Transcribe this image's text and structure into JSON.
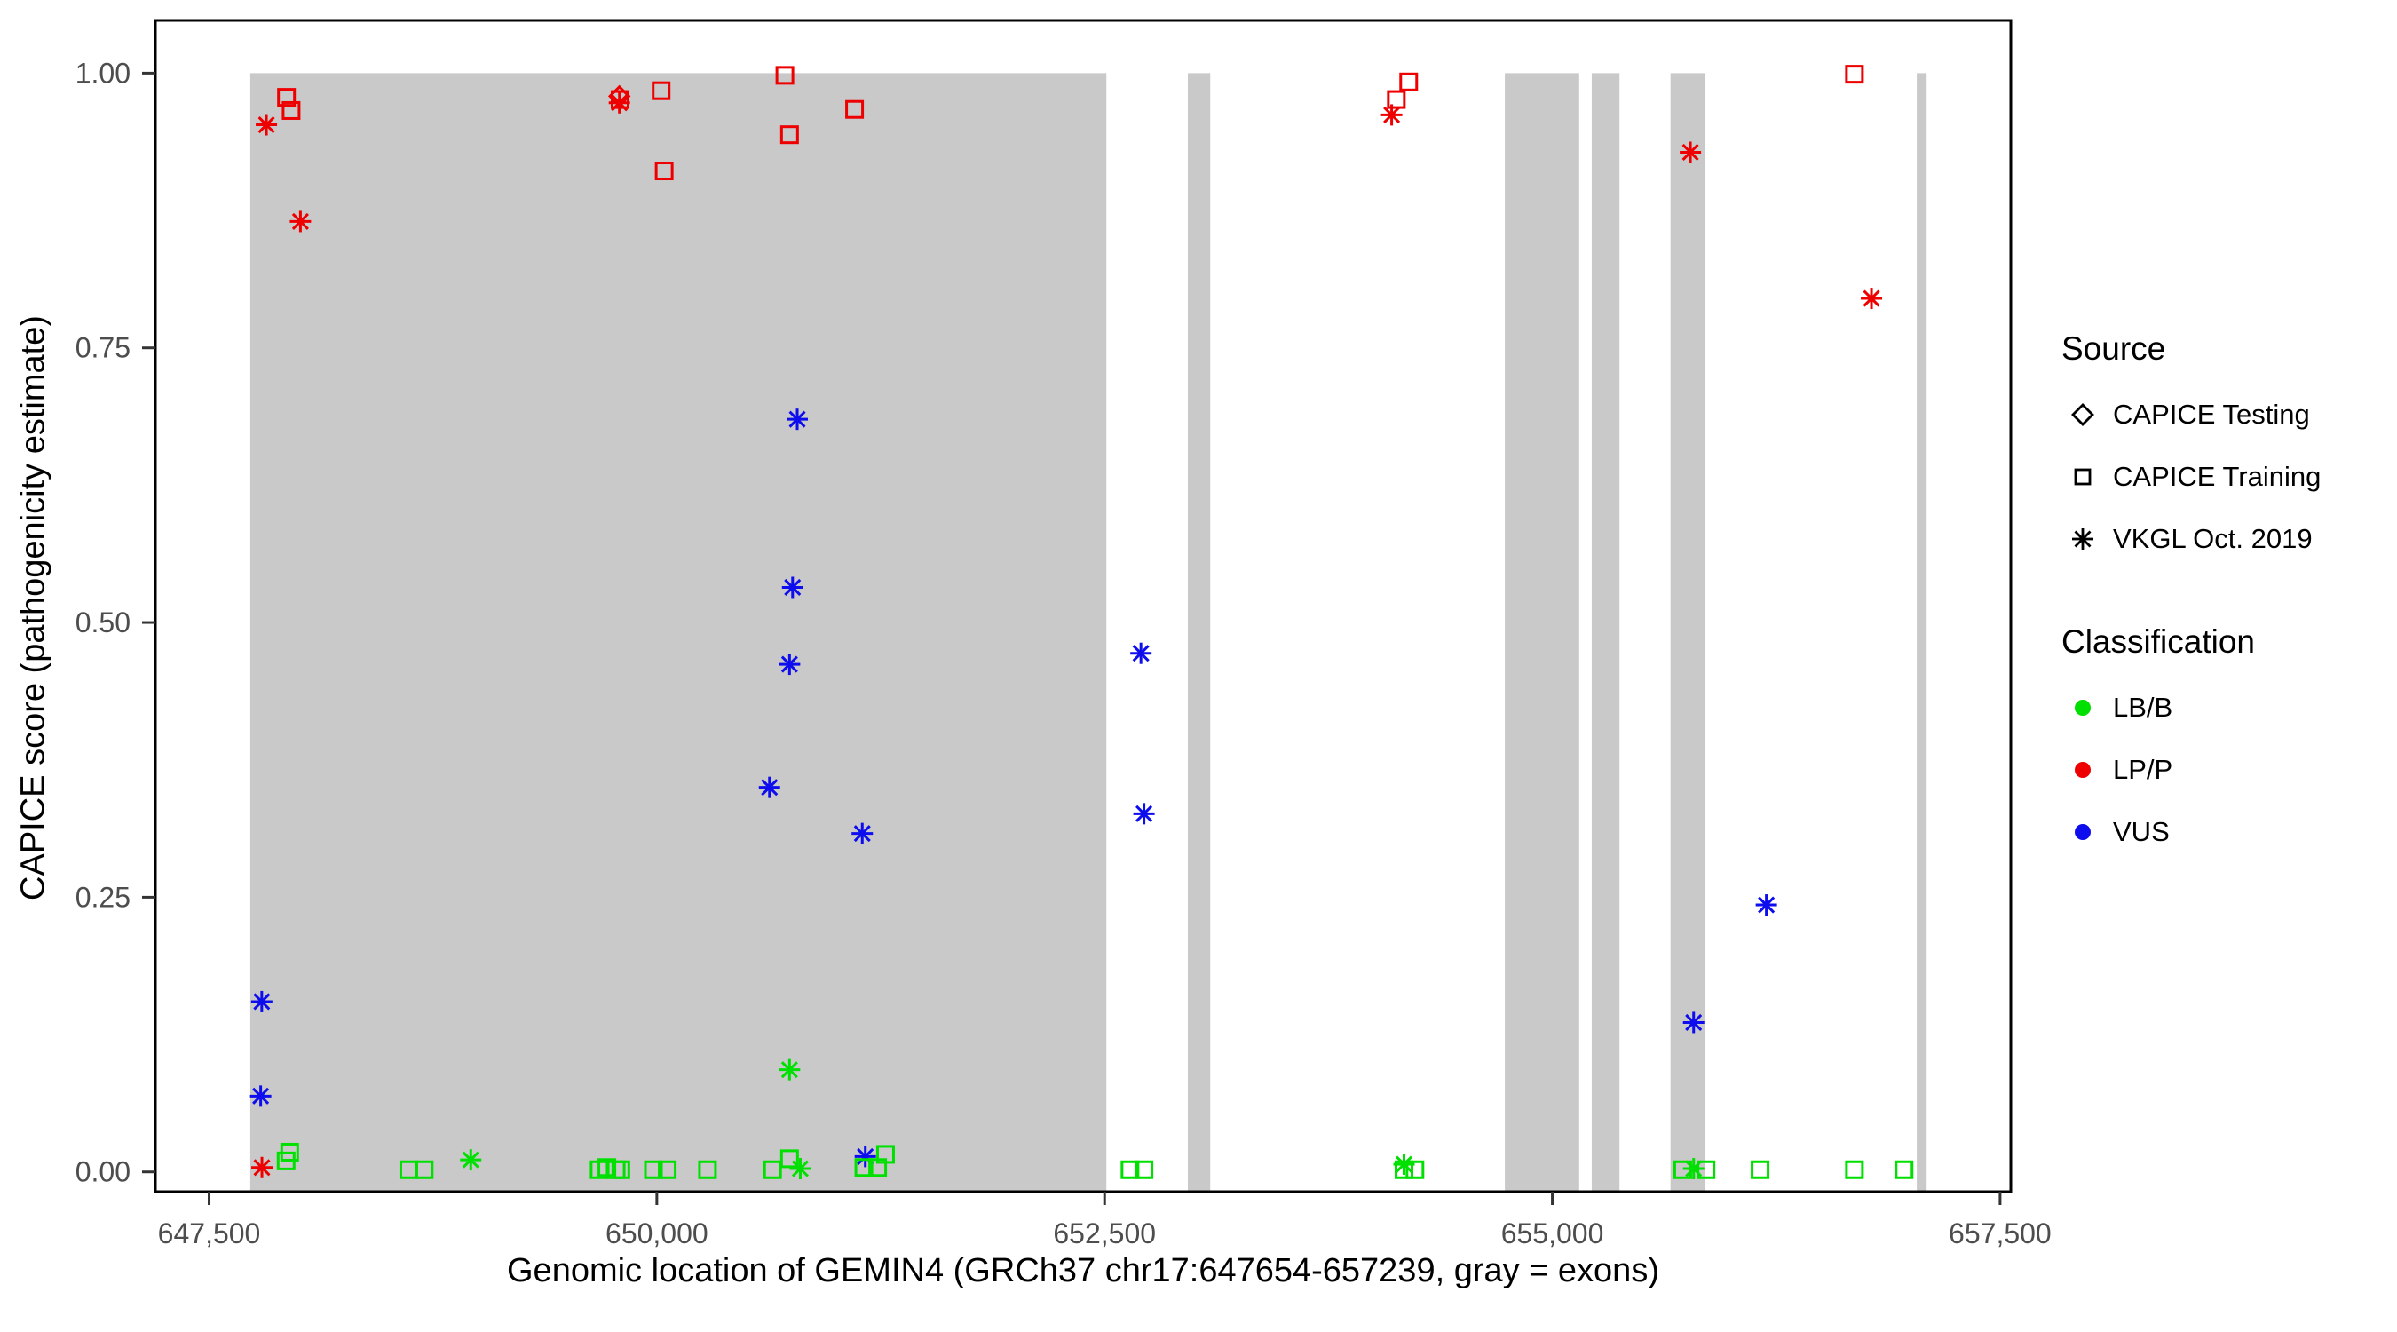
{
  "chart_data": {
    "type": "scatter",
    "title": "",
    "xlabel": "Genomic location of GEMIN4 (GRCh37 chr17:647654-657239, gray = exons)",
    "ylabel": "CAPICE score (pathogenicity estimate)",
    "xlim": [
      647200,
      657560
    ],
    "ylim": [
      -0.018,
      1.048
    ],
    "xticks": [
      647500,
      650000,
      652500,
      655000,
      657500
    ],
    "xtick_labels": [
      "647,500",
      "650,000",
      "652,500",
      "655,000",
      "657,500"
    ],
    "yticks": [
      0,
      0.25,
      0.5,
      0.75,
      1
    ],
    "ytick_labels": [
      "0.00",
      "0.25",
      "0.50",
      "0.75",
      "1.00"
    ],
    "grid": false,
    "exon_color": "#c9c9c9",
    "exon_y": [
      -0.018,
      1.0
    ],
    "exons": [
      [
        647730,
        652510
      ],
      [
        652965,
        653090
      ],
      [
        654735,
        655150
      ],
      [
        655220,
        655375
      ],
      [
        655660,
        655855
      ],
      [
        657035,
        657090
      ]
    ],
    "colors": {
      "LB/B": "#00e000",
      "LP/P": "#ee0000",
      "VUS": "#0d0dee"
    },
    "series": [
      {
        "name": "LP/P - CAPICE Testing",
        "classification": "LP/P",
        "source": "CAPICE Testing",
        "shape": "diamond",
        "points": [
          [
            649791,
            0.979
          ]
        ]
      },
      {
        "name": "LP/P - CAPICE Training",
        "classification": "LP/P",
        "source": "CAPICE Training",
        "shape": "square",
        "points": [
          [
            647932,
            0.978
          ],
          [
            647958,
            0.966
          ],
          [
            649795,
            0.976
          ],
          [
            650024,
            0.984
          ],
          [
            650041,
            0.911
          ],
          [
            650715,
            0.998
          ],
          [
            650741,
            0.944
          ],
          [
            651104,
            0.967
          ],
          [
            654129,
            0.976
          ],
          [
            654198,
            0.992
          ],
          [
            656687,
            0.999
          ]
        ]
      },
      {
        "name": "LP/P - VKGL Oct. 2019",
        "classification": "LP/P",
        "source": "VKGL Oct. 2019",
        "shape": "asterisk",
        "points": [
          [
            647820,
            0.953
          ],
          [
            648010,
            0.865
          ],
          [
            649791,
            0.973
          ],
          [
            654103,
            0.962
          ],
          [
            655771,
            0.928
          ],
          [
            656782,
            0.795
          ],
          [
            647795,
            0.004
          ]
        ]
      },
      {
        "name": "VUS - VKGL Oct. 2019",
        "classification": "VUS",
        "source": "VKGL Oct. 2019",
        "shape": "asterisk",
        "points": [
          [
            647794,
            0.155
          ],
          [
            647788,
            0.069
          ],
          [
            650784,
            0.685
          ],
          [
            650758,
            0.532
          ],
          [
            650741,
            0.462
          ],
          [
            650629,
            0.35
          ],
          [
            651147,
            0.308
          ],
          [
            652703,
            0.472
          ],
          [
            652720,
            0.326
          ],
          [
            656195,
            0.243
          ],
          [
            655789,
            0.136
          ],
          [
            651164,
            0.014
          ]
        ]
      },
      {
        "name": "LB/B - VKGL Oct. 2019",
        "classification": "LB/B",
        "source": "VKGL Oct. 2019",
        "shape": "asterisk",
        "points": [
          [
            648961,
            0.011
          ],
          [
            650741,
            0.093
          ],
          [
            650801,
            0.003
          ],
          [
            654172,
            0.007
          ],
          [
            655789,
            0.003
          ]
        ]
      },
      {
        "name": "LB/B - CAPICE Training",
        "classification": "LB/B",
        "source": "CAPICE Training",
        "shape": "square",
        "points": [
          [
            647930,
            0.01
          ],
          [
            647950,
            0.018
          ],
          [
            648615,
            0.002
          ],
          [
            648701,
            0.002
          ],
          [
            649678,
            0.002
          ],
          [
            649721,
            0.004
          ],
          [
            649773,
            0.002
          ],
          [
            649799,
            0.002
          ],
          [
            649981,
            0.002
          ],
          [
            650058,
            0.002
          ],
          [
            650283,
            0.002
          ],
          [
            650646,
            0.002
          ],
          [
            650741,
            0.012
          ],
          [
            651156,
            0.004
          ],
          [
            651233,
            0.004
          ],
          [
            651277,
            0.016
          ],
          [
            652642,
            0.002
          ],
          [
            652720,
            0.002
          ],
          [
            654172,
            0.002
          ],
          [
            654233,
            0.002
          ],
          [
            655728,
            0.002
          ],
          [
            655858,
            0.002
          ],
          [
            656160,
            0.002
          ],
          [
            656687,
            0.002
          ],
          [
            656964,
            0.002
          ]
        ]
      }
    ],
    "legend": {
      "source": {
        "title": "Source",
        "items": [
          {
            "label": "CAPICE Testing",
            "shape": "diamond"
          },
          {
            "label": "CAPICE Training",
            "shape": "square"
          },
          {
            "label": "VKGL Oct. 2019",
            "shape": "asterisk"
          }
        ]
      },
      "classification": {
        "title": "Classification",
        "items": [
          {
            "label": "LB/B",
            "color": "#00e000"
          },
          {
            "label": "LP/P",
            "color": "#ee0000"
          },
          {
            "label": "VUS",
            "color": "#0d0dee"
          }
        ]
      }
    }
  }
}
